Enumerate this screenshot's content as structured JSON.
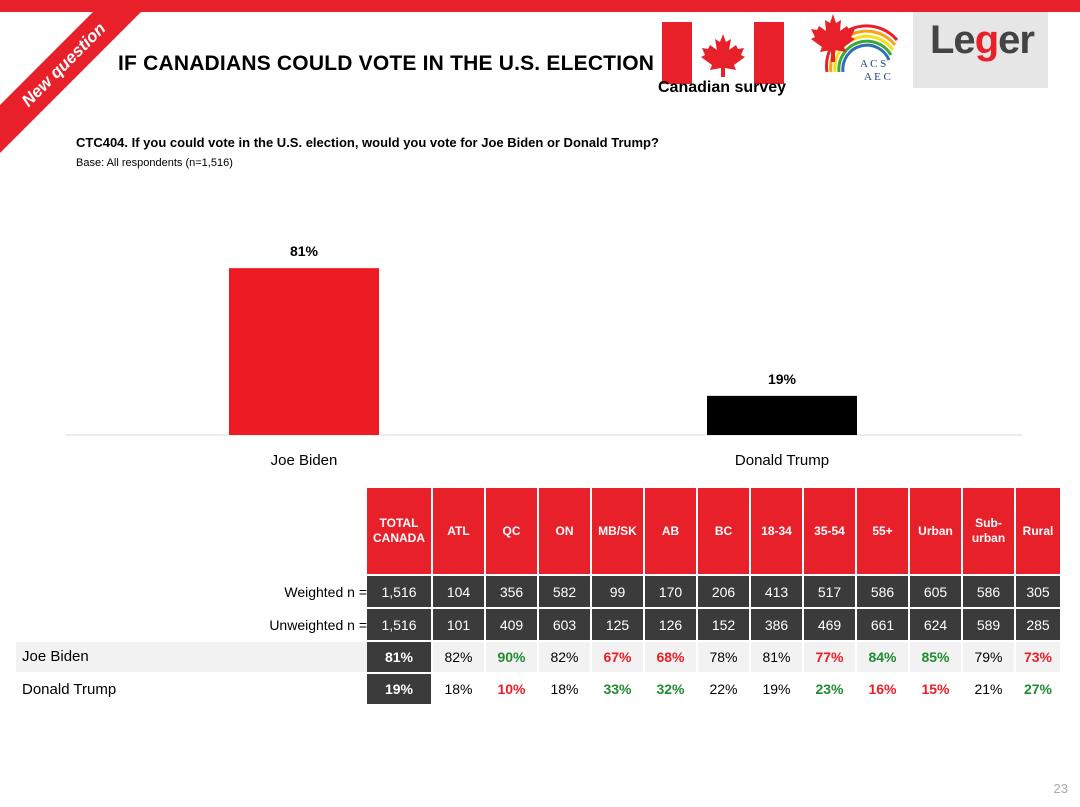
{
  "header": {
    "ribbon": "New question",
    "title": "IF CANADIANS COULD VOTE IN THE U.S. ELECTION",
    "survey_label": "Canadian survey",
    "acs_line1": "A C S",
    "acs_line2": "A E C",
    "logo_part1": "Le",
    "logo_g": "g",
    "logo_part2": "er"
  },
  "question": "CTC404. If you could vote in the U.S. election, would you vote for Joe Biden or Donald Trump?",
  "base": "Base: All respondents (n=1,516)",
  "colors": {
    "biden": "#ed1c24",
    "trump": "#000000",
    "accent": "#e8202a",
    "dark": "#3b3b3b",
    "positive": "#1e8c2f",
    "negative": "#ee1c25"
  },
  "chart_data": {
    "type": "bar",
    "categories": [
      "Joe Biden",
      "Donald Trump"
    ],
    "values": [
      81,
      19
    ],
    "data_labels": [
      "81%",
      "19%"
    ],
    "ylim": [
      0,
      100
    ],
    "grid": false
  },
  "table": {
    "headers": [
      "TOTAL CANADA",
      "ATL",
      "QC",
      "ON",
      "MB/SK",
      "AB",
      "BC",
      "18-34",
      "35-54",
      "55+",
      "Urban",
      "Sub-urban",
      "Rural"
    ],
    "weighted_label": "Weighted n =",
    "weighted": [
      "1,516",
      "104",
      "356",
      "582",
      "99",
      "170",
      "206",
      "413",
      "517",
      "586",
      "605",
      "586",
      "305"
    ],
    "unweighted_label": "Unweighted n =",
    "unweighted": [
      "1,516",
      "101",
      "409",
      "603",
      "125",
      "126",
      "152",
      "386",
      "469",
      "661",
      "624",
      "589",
      "285"
    ],
    "rows": [
      {
        "label": "Joe Biden",
        "values": [
          "81%",
          "82%",
          "90%",
          "82%",
          "67%",
          "68%",
          "78%",
          "81%",
          "77%",
          "84%",
          "85%",
          "79%",
          "73%"
        ],
        "sig": [
          "",
          "",
          "up",
          "",
          "down",
          "down",
          "",
          "",
          "down",
          "up",
          "up",
          "",
          "down"
        ]
      },
      {
        "label": "Donald Trump",
        "values": [
          "19%",
          "18%",
          "10%",
          "18%",
          "33%",
          "32%",
          "22%",
          "19%",
          "23%",
          "16%",
          "15%",
          "21%",
          "27%"
        ],
        "sig": [
          "",
          "",
          "down",
          "",
          "up",
          "up",
          "",
          "",
          "up",
          "down",
          "down",
          "",
          "up"
        ]
      }
    ]
  },
  "page_number": "23"
}
